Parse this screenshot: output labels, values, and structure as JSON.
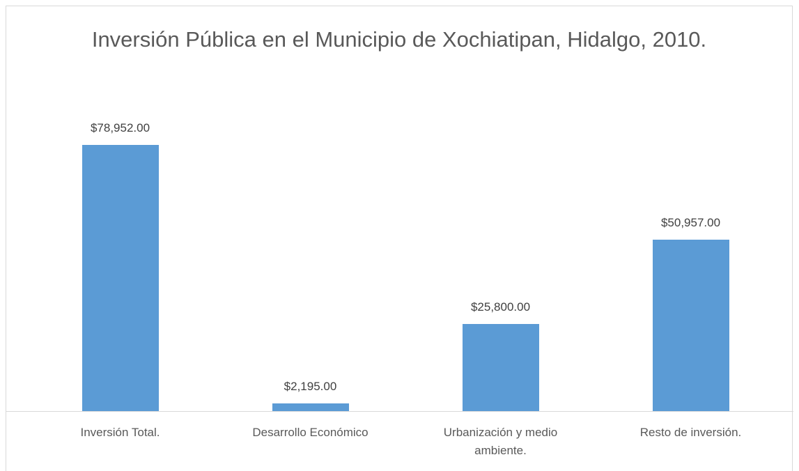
{
  "chart_data": {
    "type": "bar",
    "title": "Inversión Pública en el Municipio de Xochiatipan, Hidalgo, 2010.",
    "categories": [
      "Inversión Total.",
      "Desarrollo Económico",
      "Urbanización y medio ambiente.",
      "Resto de inversión."
    ],
    "values": [
      78952,
      2195,
      25800,
      50957
    ],
    "value_labels": [
      "$78,952.00",
      "$2,195.00",
      "$25,800.00",
      "$50,957.00"
    ],
    "color": "#5b9bd5",
    "ylim": [
      0,
      90000
    ]
  }
}
